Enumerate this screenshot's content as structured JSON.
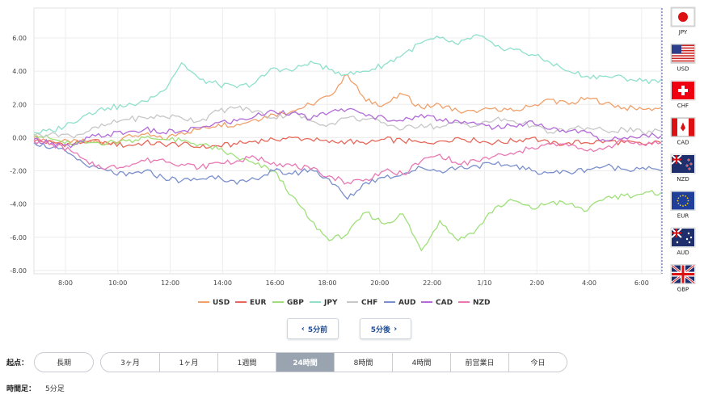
{
  "chart_data": {
    "type": "line",
    "x_ticks": [
      "8:00",
      "10:00",
      "12:00",
      "14:00",
      "16:00",
      "18:00",
      "20:00",
      "22:00",
      "1/10",
      "2:00",
      "4:00",
      "6:00"
    ],
    "y_ticks": [
      "6.00",
      "4.00",
      "2.00",
      "0.00",
      "-2.00",
      "-4.00",
      "-6.00",
      "-8.00"
    ],
    "ylim": [
      -8.2,
      7.8
    ],
    "grid": true,
    "legend_position": "bottom",
    "series": [
      {
        "name": "USD",
        "color": "#f0a06a",
        "values": [
          0,
          -0.2,
          -0.3,
          -0.2,
          -0.4,
          0.1,
          0.2,
          -0.1,
          0.3,
          0.5,
          0.8,
          0.8,
          1.1,
          1.4,
          1.6,
          2.0,
          2.5,
          3.8,
          2.2,
          2.0,
          2.6,
          1.8,
          2.0,
          1.6,
          1.5,
          1.8,
          1.6,
          1.9,
          2.3,
          2.0,
          2.4,
          2.1,
          1.8,
          1.7,
          1.8
        ]
      },
      {
        "name": "EUR",
        "color": "#e6685a",
        "values": [
          -0.2,
          -0.3,
          -0.4,
          -0.2,
          -0.3,
          -0.5,
          -0.3,
          -0.4,
          -0.4,
          -0.6,
          -0.5,
          -0.4,
          -0.2,
          -0.1,
          0.0,
          -0.1,
          -0.3,
          -0.2,
          -0.4,
          -0.1,
          -0.2,
          -0.3,
          -0.2,
          0.0,
          -0.2,
          -0.3,
          -0.2,
          0.0,
          -0.4,
          -0.3,
          -0.3,
          -0.2,
          -0.3,
          -0.4,
          -0.3
        ]
      },
      {
        "name": "GBP",
        "color": "#9fe07a",
        "values": [
          0.2,
          -0.1,
          -0.4,
          -0.3,
          -0.3,
          -0.2,
          0.0,
          -0.1,
          -0.2,
          -0.4,
          -0.7,
          -1.2,
          -1.6,
          -2.0,
          -3.5,
          -5.0,
          -6.2,
          -5.8,
          -4.5,
          -5.2,
          -4.6,
          -6.8,
          -5.0,
          -6.2,
          -5.5,
          -4.2,
          -3.8,
          -4.3,
          -3.9,
          -4.0,
          -4.4,
          -3.6,
          -3.5,
          -3.4,
          -3.3
        ]
      },
      {
        "name": "JPY",
        "color": "#8ee0cc",
        "values": [
          0.3,
          0.4,
          0.9,
          1.5,
          1.8,
          1.9,
          2.2,
          2.8,
          4.5,
          3.5,
          3.2,
          3.0,
          3.3,
          4.2,
          4.0,
          4.6,
          4.1,
          3.8,
          4.0,
          4.4,
          5.0,
          5.7,
          6.0,
          5.6,
          6.2,
          5.5,
          5.3,
          5.0,
          4.5,
          4.0,
          3.7,
          3.7,
          3.6,
          3.4,
          3.5
        ]
      },
      {
        "name": "CHF",
        "color": "#c7c7c7",
        "values": [
          0.1,
          0.3,
          0.1,
          0.4,
          0.8,
          1.1,
          1.2,
          1.3,
          1.2,
          1.0,
          1.6,
          1.8,
          1.6,
          1.2,
          1.5,
          1.0,
          0.8,
          1.2,
          1.1,
          0.9,
          0.5,
          0.8,
          0.6,
          0.9,
          0.7,
          1.1,
          1.0,
          0.7,
          0.3,
          0.5,
          0.6,
          0.4,
          0.5,
          0.3,
          0.4
        ]
      },
      {
        "name": "AUD",
        "color": "#7a8fcc",
        "values": [
          -0.3,
          -0.6,
          -1.0,
          -1.8,
          -2.0,
          -2.3,
          -2.0,
          -2.4,
          -2.6,
          -2.5,
          -2.3,
          -2.8,
          -2.5,
          -2.0,
          -2.2,
          -1.9,
          -2.5,
          -3.7,
          -2.7,
          -2.4,
          -2.2,
          -1.8,
          -2.0,
          -1.8,
          -1.7,
          -1.6,
          -1.7,
          -2.0,
          -2.1,
          -2.1,
          -1.9,
          -1.7,
          -1.9,
          -1.8,
          -2.0
        ]
      },
      {
        "name": "CAD",
        "color": "#b26ad8",
        "values": [
          -0.1,
          -0.3,
          -0.6,
          0.0,
          0.2,
          0.3,
          0.5,
          0.3,
          0.4,
          0.6,
          0.9,
          1.0,
          1.3,
          1.6,
          1.5,
          1.1,
          1.5,
          1.7,
          1.3,
          1.2,
          1.0,
          1.4,
          1.1,
          1.0,
          0.8,
          0.6,
          0.7,
          1.0,
          0.5,
          0.4,
          0.3,
          -0.2,
          0.0,
          0.2,
          0.1
        ]
      },
      {
        "name": "NZD",
        "color": "#e878b4",
        "values": [
          -0.2,
          -0.4,
          -0.8,
          -1.6,
          -1.8,
          -1.7,
          -1.4,
          -1.3,
          -1.6,
          -1.8,
          -1.5,
          -1.4,
          -1.2,
          -1.5,
          -1.7,
          -1.9,
          -2.3,
          -2.7,
          -2.5,
          -2.0,
          -2.2,
          -1.4,
          -1.0,
          -1.6,
          -1.4,
          -1.1,
          -1.0,
          -0.6,
          -0.4,
          -0.5,
          -0.8,
          -0.6,
          -0.2,
          -0.4,
          -0.3
        ]
      }
    ]
  },
  "flags": [
    {
      "code": "JPY",
      "icon": "japan-flag"
    },
    {
      "code": "USD",
      "icon": "usa-flag"
    },
    {
      "code": "CHF",
      "icon": "switzerland-flag"
    },
    {
      "code": "CAD",
      "icon": "canada-flag"
    },
    {
      "code": "NZD",
      "icon": "new-zealand-flag"
    },
    {
      "code": "EUR",
      "icon": "eu-flag"
    },
    {
      "code": "AUD",
      "icon": "australia-flag"
    },
    {
      "code": "GBP",
      "icon": "uk-flag"
    }
  ],
  "nav": {
    "prev": "5分前",
    "next": "5分後"
  },
  "range": {
    "label": "起点：",
    "first": "長期",
    "options": [
      "3ヶ月",
      "1ヶ月",
      "1週間",
      "24時間",
      "8時間",
      "4時間",
      "前営業日",
      "今日"
    ],
    "active": "24時間"
  },
  "footer": {
    "label": "時間足：",
    "value": "5分足"
  }
}
